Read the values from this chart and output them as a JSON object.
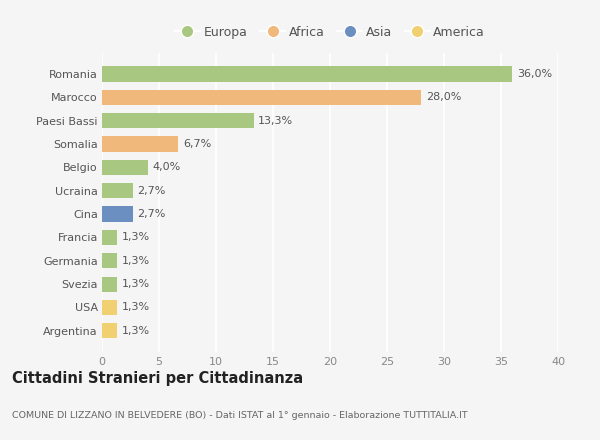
{
  "categories": [
    "Romania",
    "Marocco",
    "Paesi Bassi",
    "Somalia",
    "Belgio",
    "Ucraina",
    "Cina",
    "Francia",
    "Germania",
    "Svezia",
    "USA",
    "Argentina"
  ],
  "values": [
    36.0,
    28.0,
    13.3,
    6.7,
    4.0,
    2.7,
    2.7,
    1.3,
    1.3,
    1.3,
    1.3,
    1.3
  ],
  "labels": [
    "36,0%",
    "28,0%",
    "13,3%",
    "6,7%",
    "4,0%",
    "2,7%",
    "2,7%",
    "1,3%",
    "1,3%",
    "1,3%",
    "1,3%",
    "1,3%"
  ],
  "colors": [
    "#a8c882",
    "#f0b87a",
    "#a8c882",
    "#f0b87a",
    "#a8c882",
    "#a8c882",
    "#6b8fc0",
    "#a8c882",
    "#a8c882",
    "#a8c882",
    "#f0d070",
    "#f0d070"
  ],
  "legend_labels": [
    "Europa",
    "Africa",
    "Asia",
    "America"
  ],
  "legend_colors": [
    "#a8c882",
    "#f0b87a",
    "#6b8fc0",
    "#f0d070"
  ],
  "xlim": [
    0,
    40
  ],
  "xticks": [
    0,
    5,
    10,
    15,
    20,
    25,
    30,
    35,
    40
  ],
  "title": "Cittadini Stranieri per Cittadinanza",
  "subtitle": "COMUNE DI LIZZANO IN BELVEDERE (BO) - Dati ISTAT al 1° gennaio - Elaborazione TUTTITALIA.IT",
  "background_color": "#f5f5f5",
  "grid_color": "#ffffff",
  "bar_height": 0.65,
  "label_fontsize": 8,
  "tick_fontsize": 8,
  "axis_label_color": "#888888",
  "ytick_color": "#555555"
}
